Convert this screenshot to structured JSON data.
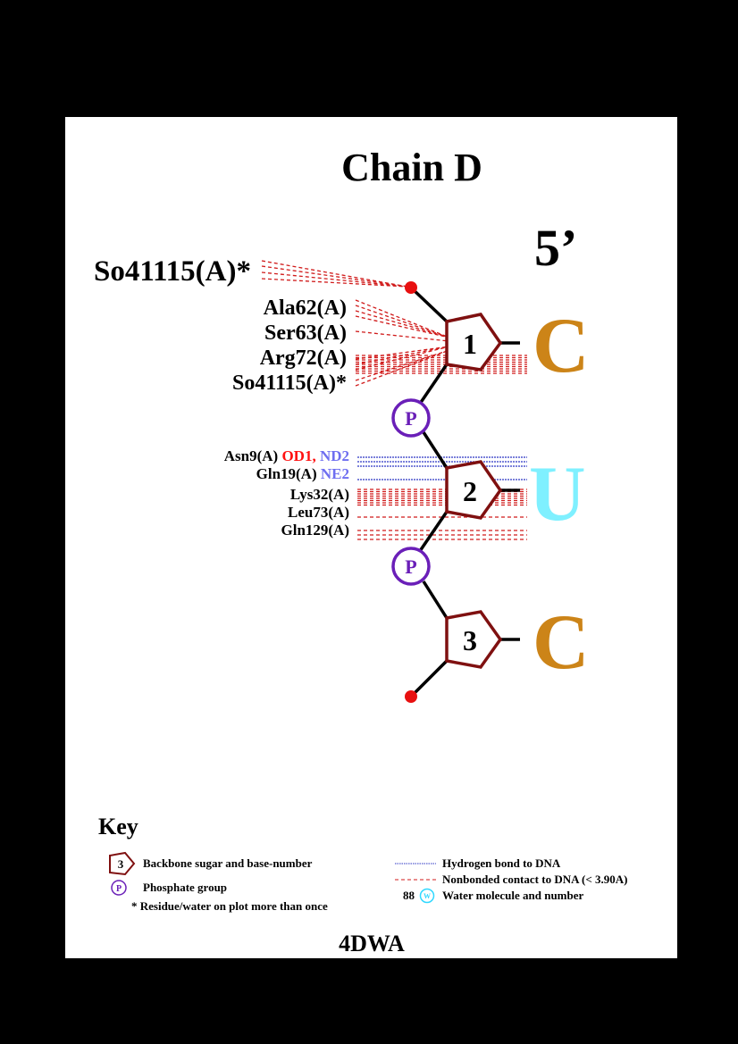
{
  "title": "Chain D",
  "strand_label": "5’",
  "pdb_code": "4DWA",
  "colors": {
    "sugar": "#7f1010",
    "phosphate": "#6a1fb8",
    "backbone": "#000000",
    "terminal": "#e81010",
    "hbond": "#2b34c4",
    "nonbonded": "#d01a1a",
    "base_C": "#cc8418",
    "base_U": "#7ff0ff",
    "atom_red": "#ff1111",
    "atom_blue": "#6e6ef0",
    "water": "#30d8ff"
  },
  "nucleotides": [
    {
      "number": "1",
      "base": "C"
    },
    {
      "number": "2",
      "base": "U"
    },
    {
      "number": "3",
      "base": "C"
    }
  ],
  "phosphates": [
    {
      "label": "P"
    },
    {
      "label": "P"
    }
  ],
  "contacts": {
    "n1": [
      {
        "residue": "So41115(A)*",
        "type": "nonbonded"
      },
      {
        "residue": "Ala62(A)",
        "type": "nonbonded"
      },
      {
        "residue": "Ser63(A)",
        "type": "nonbonded"
      },
      {
        "residue": "Arg72(A)",
        "type": "nonbonded"
      },
      {
        "residue": "So41115(A)*",
        "type": "nonbonded"
      }
    ],
    "n2": [
      {
        "residue": "Asn9(A)",
        "atoms": [
          {
            "name": "OD1,",
            "color": "atom_red"
          },
          {
            "name": "ND2",
            "color": "atom_blue"
          }
        ],
        "type": "hbond"
      },
      {
        "residue": "Gln19(A)",
        "atoms": [
          {
            "name": "NE2",
            "color": "atom_blue"
          }
        ],
        "type": "hbond"
      },
      {
        "residue": "Lys32(A)",
        "type": "nonbonded"
      },
      {
        "residue": "Leu73(A)",
        "type": "nonbonded"
      },
      {
        "residue": "Gln129(A)",
        "type": "nonbonded"
      }
    ]
  },
  "key": {
    "title": "Key",
    "sugar_sample": "3",
    "sugar_desc": "Backbone sugar and base-number",
    "phosphate_sample": "P",
    "phosphate_desc": "Phosphate group",
    "repeat_desc": "* Residue/water on plot more than once",
    "hbond_desc": "Hydrogen bond to DNA",
    "nonbonded_desc": "Nonbonded contact to DNA (< 3.90A)",
    "water_number": "88",
    "water_symbol": "W",
    "water_desc": "Water molecule and number"
  }
}
